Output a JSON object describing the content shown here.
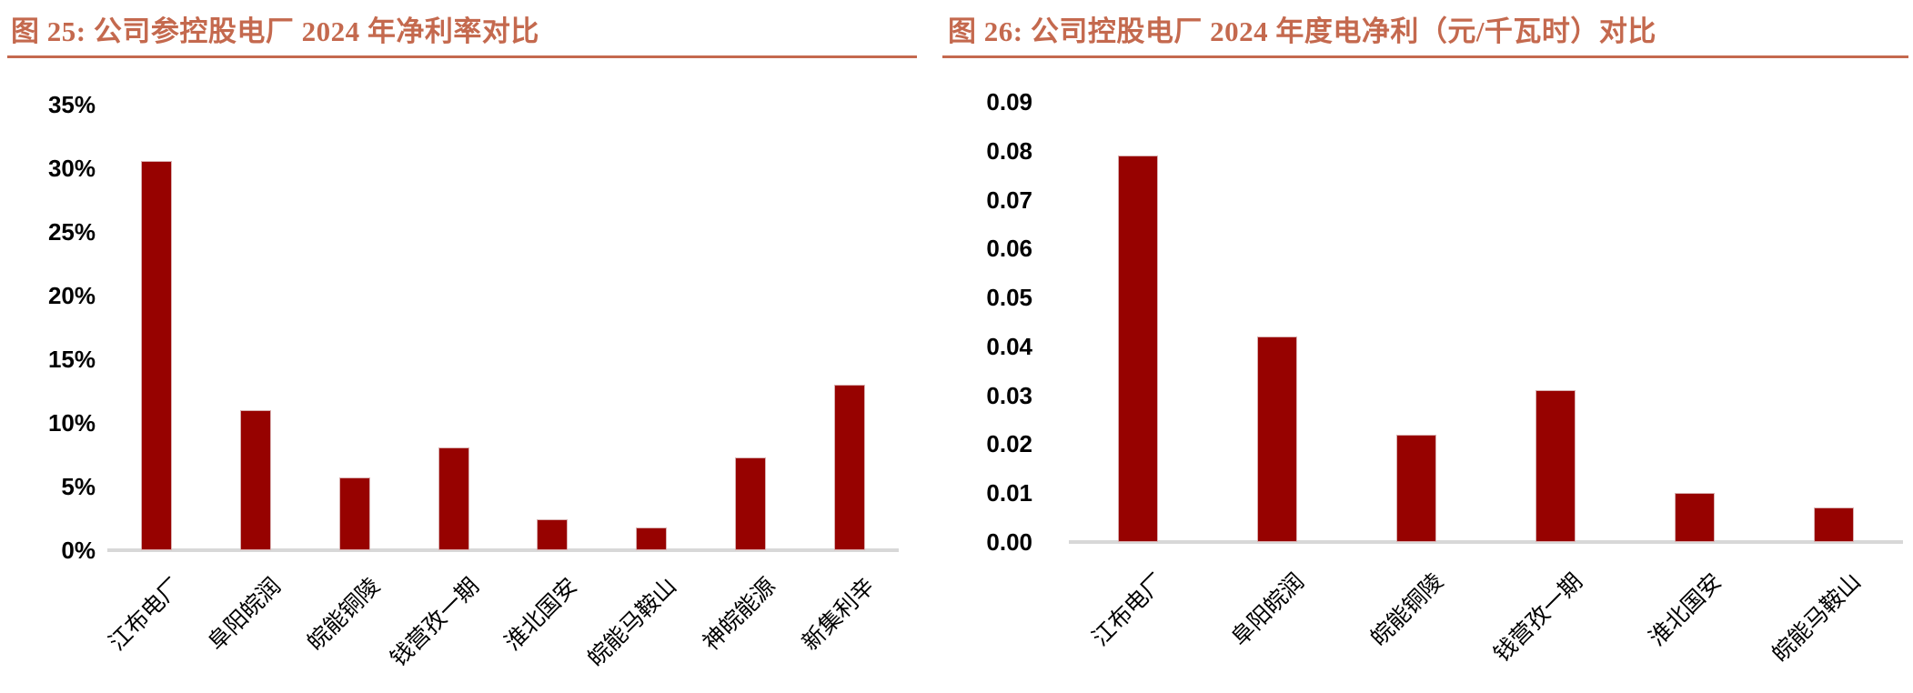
{
  "colors": {
    "bar_fill": "#970200",
    "bar_edge": "#d9b0b0",
    "title_text": "#C4694E",
    "title_underline": "#C4694E",
    "axis_line": "#D8D8D8",
    "tick_text": "#000000"
  },
  "chart_data": [
    {
      "type": "bar",
      "title": "图 25:  公司参控股电厂 2024 年净利率对比",
      "categories": [
        "江布电厂",
        "阜阳皖润",
        "皖能铜陵",
        "钱营孜一期",
        "淮北国安",
        "皖能马鞍山",
        "神皖能源",
        "新集利辛"
      ],
      "values": [
        30.6,
        11.0,
        5.7,
        8.1,
        2.4,
        1.8,
        7.3,
        13.0
      ],
      "unit": "%",
      "ylim": [
        0,
        35
      ],
      "ytick_step": 5,
      "ytick_labels": [
        "0%",
        "5%",
        "10%",
        "15%",
        "20%",
        "25%",
        "30%",
        "35%"
      ],
      "xlabel": "",
      "ylabel": "",
      "grid": false,
      "legend_position": "none"
    },
    {
      "type": "bar",
      "title": "图 26:  公司控股电厂 2024 年度电净利（元/千瓦时）对比",
      "categories": [
        "江布电厂",
        "阜阳皖润",
        "皖能铜陵",
        "钱营孜一期",
        "淮北国安",
        "皖能马鞍山"
      ],
      "values": [
        0.079,
        0.042,
        0.022,
        0.031,
        0.01,
        0.007
      ],
      "unit": "元/千瓦时",
      "ylim": [
        0,
        0.09
      ],
      "ytick_step": 0.01,
      "ytick_labels": [
        "0.00",
        "0.01",
        "0.02",
        "0.03",
        "0.04",
        "0.05",
        "0.06",
        "0.07",
        "0.08",
        "0.09"
      ],
      "xlabel": "",
      "ylabel": "",
      "grid": false,
      "legend_position": "none"
    }
  ]
}
